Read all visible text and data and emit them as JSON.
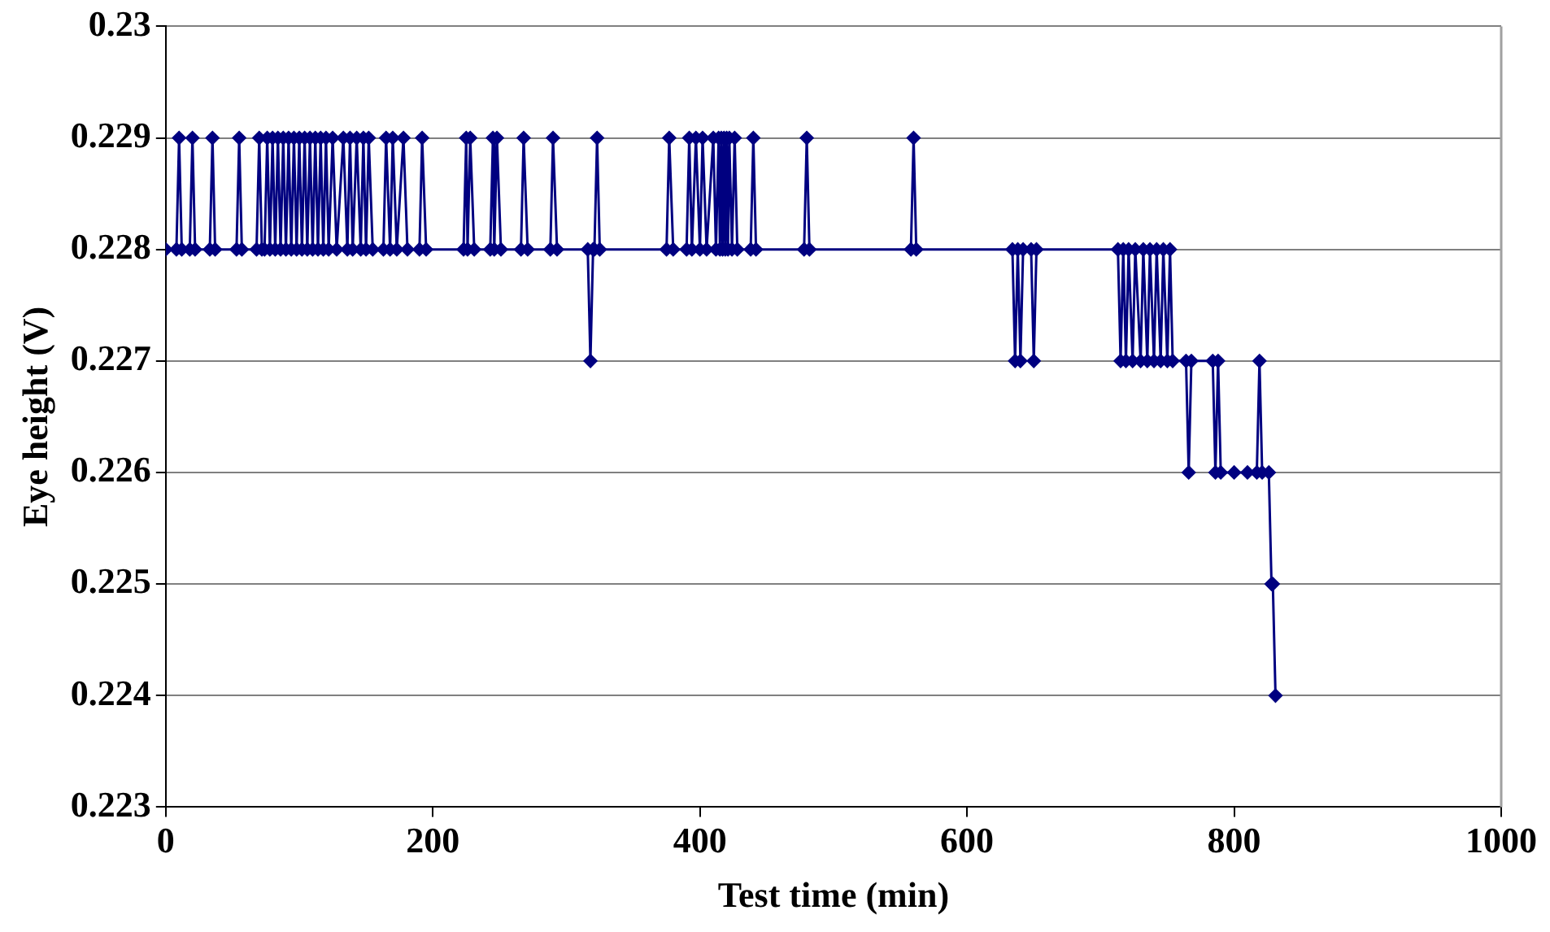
{
  "chart_data": {
    "type": "line",
    "xlabel": "Test time (min)",
    "ylabel": "Eye height (V)",
    "x": [
      0,
      8,
      10,
      12,
      18,
      20,
      22,
      33,
      35,
      37,
      53,
      55,
      57,
      68,
      70,
      72,
      74,
      76,
      78,
      80,
      82,
      84,
      86,
      88,
      90,
      92,
      94,
      96,
      98,
      100,
      102,
      104,
      106,
      108,
      110,
      112,
      114,
      116,
      118,
      120,
      122,
      125,
      128,
      133,
      136,
      138,
      140,
      143,
      146,
      148,
      150,
      152,
      155,
      163,
      165,
      168,
      170,
      173,
      178,
      181,
      190,
      192,
      195,
      223,
      225,
      226,
      228,
      231,
      243,
      245,
      246,
      248,
      251,
      266,
      268,
      271,
      288,
      290,
      293,
      316,
      318,
      320,
      321,
      323,
      325,
      375,
      377,
      380,
      390,
      392,
      394,
      397,
      400,
      402,
      405,
      410,
      412,
      414,
      415,
      416,
      417,
      418,
      419,
      420,
      421,
      422,
      424,
      426,
      428,
      438,
      440,
      442,
      478,
      480,
      482,
      558,
      560,
      562,
      634,
      636,
      638,
      640,
      642,
      648,
      650,
      652,
      713,
      715,
      717,
      719,
      721,
      724,
      726,
      730,
      732,
      735,
      737,
      740,
      742,
      745,
      747,
      750,
      752,
      754,
      764,
      766,
      768,
      784,
      786,
      788,
      790,
      800,
      810,
      817,
      819,
      821,
      826,
      828,
      829,
      831
    ],
    "series": [
      {
        "color": "#000080",
        "values": [
          0.228,
          0.228,
          0.229,
          0.228,
          0.228,
          0.229,
          0.228,
          0.228,
          0.229,
          0.228,
          0.228,
          0.229,
          0.228,
          0.228,
          0.229,
          0.228,
          0.228,
          0.229,
          0.228,
          0.229,
          0.228,
          0.229,
          0.228,
          0.229,
          0.228,
          0.229,
          0.228,
          0.229,
          0.228,
          0.229,
          0.228,
          0.229,
          0.228,
          0.229,
          0.228,
          0.229,
          0.228,
          0.229,
          0.228,
          0.229,
          0.228,
          0.229,
          0.228,
          0.229,
          0.228,
          0.229,
          0.228,
          0.229,
          0.228,
          0.229,
          0.228,
          0.229,
          0.228,
          0.228,
          0.229,
          0.228,
          0.229,
          0.228,
          0.229,
          0.228,
          0.228,
          0.229,
          0.228,
          0.228,
          0.229,
          0.228,
          0.229,
          0.228,
          0.228,
          0.229,
          0.228,
          0.229,
          0.228,
          0.228,
          0.229,
          0.228,
          0.228,
          0.229,
          0.228,
          0.228,
          0.227,
          0.228,
          0.228,
          0.229,
          0.228,
          0.228,
          0.229,
          0.228,
          0.228,
          0.229,
          0.228,
          0.229,
          0.228,
          0.229,
          0.228,
          0.229,
          0.228,
          0.229,
          0.228,
          0.229,
          0.228,
          0.229,
          0.228,
          0.229,
          0.228,
          0.229,
          0.228,
          0.229,
          0.228,
          0.228,
          0.229,
          0.228,
          0.228,
          0.229,
          0.228,
          0.228,
          0.229,
          0.228,
          0.228,
          0.227,
          0.228,
          0.227,
          0.228,
          0.228,
          0.227,
          0.228,
          0.228,
          0.227,
          0.228,
          0.227,
          0.228,
          0.227,
          0.228,
          0.227,
          0.228,
          0.227,
          0.228,
          0.227,
          0.228,
          0.227,
          0.228,
          0.227,
          0.228,
          0.227,
          0.227,
          0.226,
          0.227,
          0.227,
          0.226,
          0.227,
          0.226,
          0.226,
          0.226,
          0.226,
          0.227,
          0.226,
          0.226,
          0.225,
          0.225,
          0.224
        ]
      }
    ],
    "xlim": [
      0,
      1000
    ],
    "xticks": [
      0,
      200,
      400,
      600,
      800,
      1000
    ],
    "ylim": [
      0.223,
      0.23
    ],
    "yticks": [
      0.223,
      0.224,
      0.225,
      0.226,
      0.227,
      0.228,
      0.229,
      0.23
    ],
    "grid": "y",
    "marker": "diamond",
    "line_style": "solid",
    "legend": false
  }
}
